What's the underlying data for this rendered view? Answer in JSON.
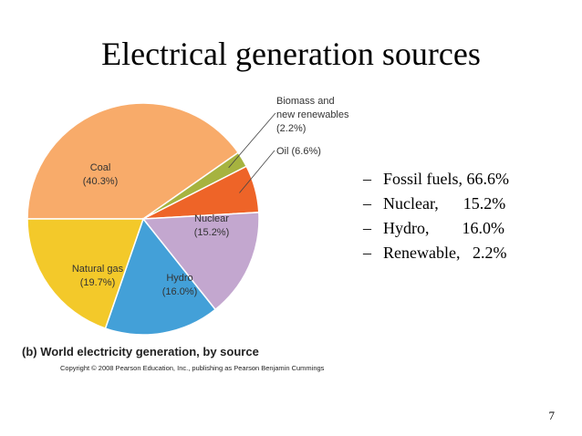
{
  "slide": {
    "title": "Electrical generation sources",
    "page_number": "7"
  },
  "bullets": [
    {
      "dash": "–",
      "text": "Fossil fuels, 66.6%"
    },
    {
      "dash": "–",
      "text": "Nuclear,      15.2%"
    },
    {
      "dash": "–",
      "text": "Hydro,        16.0%"
    },
    {
      "dash": "–",
      "text": "Renewable,   2.2%"
    }
  ],
  "chart_data": {
    "type": "pie",
    "title": "(b) World electricity generation, by source",
    "copyright": "Copyright © 2008 Pearson Education, Inc., publishing as Pearson Benjamin Cummings",
    "slices": [
      {
        "name": "Coal",
        "value": 40.3,
        "label_lines": [
          "Coal",
          "(40.3%)"
        ],
        "color": "#f8ab6a"
      },
      {
        "name": "Biomass and new renewables",
        "value": 2.2,
        "label_lines": [
          "Biomass and",
          "new renewables",
          "(2.2%)"
        ],
        "color": "#a6b33f"
      },
      {
        "name": "Oil",
        "value": 6.6,
        "label_lines": [
          "Oil (6.6%)"
        ],
        "color": "#ee6428"
      },
      {
        "name": "Nuclear",
        "value": 15.2,
        "label_lines": [
          "Nuclear",
          "(15.2%)"
        ],
        "color": "#c3a7cf"
      },
      {
        "name": "Hydro",
        "value": 16.0,
        "label_lines": [
          "Hydro",
          "(16.0%)"
        ],
        "color": "#43a0d8"
      },
      {
        "name": "Natural gas",
        "value": 19.7,
        "label_lines": [
          "Natural gas",
          "(19.7%)"
        ],
        "color": "#f3c92a"
      }
    ]
  }
}
